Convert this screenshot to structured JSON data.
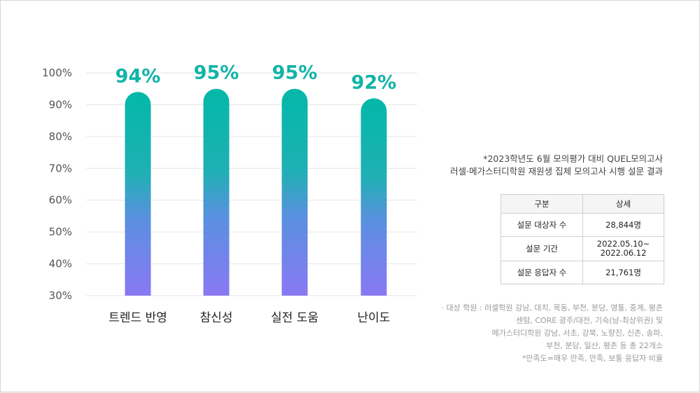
{
  "chart_data": {
    "type": "bar",
    "categories": [
      "트렌드 반영",
      "참신성",
      "실전 도움",
      "난이도"
    ],
    "values": [
      94,
      95,
      95,
      92
    ],
    "value_labels": [
      "94%",
      "95%",
      "95%",
      "92%"
    ],
    "ylim": [
      30,
      100
    ],
    "yticks": [
      "100%",
      "90%",
      "80%",
      "70%",
      "60%",
      "50%",
      "40%",
      "30%"
    ],
    "grid": true,
    "bar_gradient": [
      "#03b8a8",
      "#8a78f4"
    ],
    "label_color": "#12b3a8"
  },
  "note": {
    "line1": "*2023학년도 6월 모의평가 대비 QUEL모의고사",
    "line2": "러셀·메가스터디학원 재원생 집체 모의고사 시행 설문 결과"
  },
  "table": {
    "headers": [
      "구분",
      "상세"
    ],
    "rows": [
      [
        "설문 대상자 수",
        "28,844명"
      ],
      [
        "설문 기간",
        "2022.05.10~\n2022.06.12"
      ],
      [
        "설문 응답자 수",
        "21,761명"
      ]
    ]
  },
  "footnote": {
    "line1": "· 대상 학원 : 러셀학원 강남, 대치, 목동, 부천, 분당, 영통, 중계, 평촌",
    "line2": "센텀, CORE 광주/대전, 기숙(남-최상위권) 및",
    "line3": "메가스터디학원 강남, 서초, 강북, 노량진, 신촌, 송파,",
    "line4": "부천, 분당, 일산, 평촌 등 총 22개소",
    "line5": "*만족도=매우 만족, 만족, 보통 응답자 비율"
  }
}
